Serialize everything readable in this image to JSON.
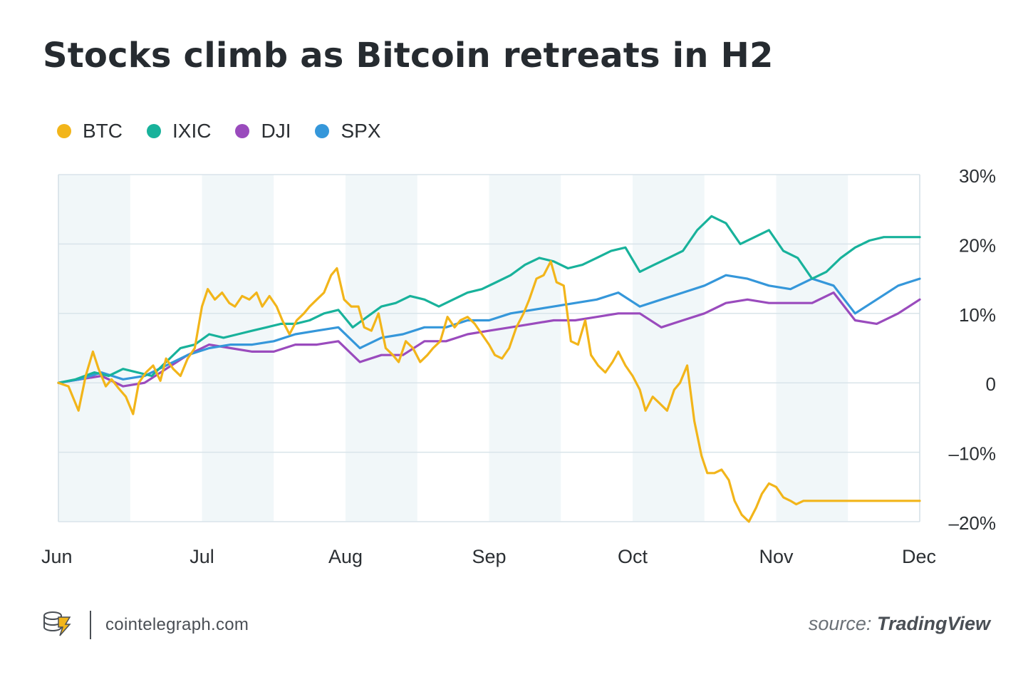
{
  "title": "Stocks climb as Bitcoin retreats in H2",
  "legend": [
    {
      "name": "BTC",
      "color": "#f2b51a"
    },
    {
      "name": "IXIC",
      "color": "#18b29b"
    },
    {
      "name": "DJI",
      "color": "#9a4bbd"
    },
    {
      "name": "SPX",
      "color": "#3597da"
    }
  ],
  "footer": {
    "logo_icon": "cointelegraph-logo-icon",
    "site": "cointelegraph.com",
    "source_prefix": "source:",
    "source_name": "TradingView"
  },
  "chart_data": {
    "type": "line",
    "x_unit": "months",
    "xlim": [
      0,
      6
    ],
    "ylim": [
      -20,
      30
    ],
    "y_ticks": [
      30,
      20,
      10,
      0,
      -10,
      -20
    ],
    "y_tick_labels": [
      "30%",
      "20%",
      "10%",
      "0",
      "–10%",
      "–20%"
    ],
    "x_ticks": [
      0,
      1,
      2,
      3,
      4,
      5,
      6
    ],
    "x_tick_labels": [
      "Jun",
      "Jul",
      "Aug",
      "Sep",
      "Oct",
      "Nov",
      "Dec"
    ],
    "grid": true,
    "legend_position": "top-left",
    "series": [
      {
        "name": "BTC",
        "color": "#f2b51a",
        "x": [
          0,
          0.07,
          0.14,
          0.19,
          0.24,
          0.28,
          0.33,
          0.37,
          0.42,
          0.47,
          0.52,
          0.56,
          0.61,
          0.66,
          0.71,
          0.75,
          0.8,
          0.85,
          0.9,
          0.95,
          1.0,
          1.04,
          1.09,
          1.14,
          1.19,
          1.23,
          1.28,
          1.33,
          1.38,
          1.42,
          1.47,
          1.52,
          1.56,
          1.61,
          1.66,
          1.71,
          1.75,
          1.8,
          1.85,
          1.9,
          1.94,
          1.99,
          2.04,
          2.09,
          2.13,
          2.18,
          2.23,
          2.28,
          2.33,
          2.37,
          2.42,
          2.47,
          2.52,
          2.57,
          2.61,
          2.66,
          2.71,
          2.76,
          2.8,
          2.85,
          2.9,
          2.95,
          3.0,
          3.04,
          3.09,
          3.14,
          3.19,
          3.24,
          3.28,
          3.33,
          3.38,
          3.43,
          3.47,
          3.52,
          3.57,
          3.62,
          3.67,
          3.71,
          3.76,
          3.81,
          3.86,
          3.9,
          3.95,
          4.0,
          4.05,
          4.09,
          4.14,
          4.19,
          4.24,
          4.29,
          4.33,
          4.38,
          4.43,
          4.48,
          4.52,
          4.57,
          4.62,
          4.67,
          4.71,
          4.76,
          4.81,
          4.86,
          4.9,
          4.95,
          5.0,
          5.05,
          5.1,
          5.14,
          5.19,
          5.24,
          5.29,
          5.33,
          5.38,
          5.43,
          5.48,
          5.52,
          5.57,
          5.62,
          5.67,
          5.71,
          5.76,
          5.81,
          5.86,
          5.9,
          5.95,
          6.0
        ],
        "values": [
          0,
          -0.5,
          -4,
          1,
          4.5,
          2,
          -0.5,
          0.5,
          -0.8,
          -2,
          -4.5,
          0,
          1.5,
          2.5,
          0.3,
          3.5,
          2,
          1,
          3.5,
          5,
          11,
          13.5,
          12,
          13,
          11.5,
          11,
          12.5,
          12,
          13,
          11,
          12.5,
          11,
          9,
          7,
          9,
          10,
          11,
          12,
          13,
          15.5,
          16.5,
          12,
          11,
          11,
          8,
          7.5,
          10,
          5,
          4,
          3,
          6,
          5,
          3,
          4,
          5,
          6,
          9.5,
          8,
          9,
          9.5,
          8.5,
          7,
          5.5,
          4,
          3.5,
          5,
          8,
          10,
          12,
          15,
          15.5,
          17.5,
          14.5,
          14,
          6,
          5.5,
          9,
          4,
          2.5,
          1.5,
          3,
          4.5,
          2.5,
          1,
          -1,
          -4,
          -2,
          -3,
          -4,
          -1,
          0,
          2.5,
          -5.5,
          -10.5,
          -13,
          -13,
          -12.5,
          -14,
          -17,
          -19,
          -20,
          -18,
          -16,
          -14.5,
          -15,
          -16.5,
          -17,
          -17.5,
          -17,
          -17,
          -17,
          -17,
          -17,
          -17,
          -17,
          -17,
          -17,
          -17,
          -17,
          -17,
          -17,
          -17,
          -17,
          -17,
          -17,
          -17
        ]
      },
      {
        "name": "IXIC",
        "color": "#18b29b",
        "x": [
          0,
          0.12,
          0.25,
          0.35,
          0.45,
          0.55,
          0.65,
          0.75,
          0.85,
          0.95,
          1.05,
          1.15,
          1.25,
          1.35,
          1.45,
          1.55,
          1.65,
          1.75,
          1.85,
          1.95,
          2.05,
          2.15,
          2.25,
          2.35,
          2.45,
          2.55,
          2.65,
          2.75,
          2.85,
          2.95,
          3.05,
          3.15,
          3.25,
          3.35,
          3.45,
          3.55,
          3.65,
          3.75,
          3.85,
          3.95,
          4.05,
          4.15,
          4.25,
          4.35,
          4.45,
          4.55,
          4.65,
          4.75,
          4.85,
          4.95,
          5.05,
          5.15,
          5.25,
          5.35,
          5.45,
          5.55,
          5.65,
          5.75,
          5.85,
          5.95,
          6.0
        ],
        "values": [
          0,
          0.5,
          1.5,
          1,
          2,
          1.5,
          1,
          3,
          5,
          5.5,
          7,
          6.5,
          7,
          7.5,
          8,
          8.5,
          8.5,
          9,
          10,
          10.5,
          8,
          9.5,
          11,
          11.5,
          12.5,
          12,
          11,
          12,
          13,
          13.5,
          14.5,
          15.5,
          17,
          18,
          17.5,
          16.5,
          17,
          18,
          19,
          19.5,
          16,
          17,
          18,
          19,
          22,
          24,
          23,
          20,
          21,
          22,
          19,
          18,
          15,
          16,
          18,
          19.5,
          20.5,
          21,
          21,
          21,
          21
        ]
      },
      {
        "name": "DJI",
        "color": "#9a4bbd",
        "x": [
          0,
          0.15,
          0.3,
          0.45,
          0.6,
          0.75,
          0.9,
          1.05,
          1.2,
          1.35,
          1.5,
          1.65,
          1.8,
          1.95,
          2.1,
          2.25,
          2.4,
          2.55,
          2.7,
          2.85,
          3.0,
          3.15,
          3.3,
          3.45,
          3.6,
          3.75,
          3.9,
          4.05,
          4.2,
          4.35,
          4.5,
          4.65,
          4.8,
          4.95,
          5.1,
          5.25,
          5.4,
          5.55,
          5.7,
          5.85,
          6.0
        ],
        "values": [
          0,
          0.5,
          1,
          -0.5,
          0,
          2,
          4,
          5.5,
          5,
          4.5,
          4.5,
          5.5,
          5.5,
          6,
          3,
          4,
          4,
          6,
          6,
          7,
          7.5,
          8,
          8.5,
          9,
          9,
          9.5,
          10,
          10,
          8,
          9,
          10,
          11.5,
          12,
          11.5,
          11.5,
          11.5,
          13,
          9,
          8.5,
          10,
          12
        ]
      },
      {
        "name": "SPX",
        "color": "#3597da",
        "x": [
          0,
          0.15,
          0.3,
          0.45,
          0.6,
          0.75,
          0.9,
          1.05,
          1.2,
          1.35,
          1.5,
          1.65,
          1.8,
          1.95,
          2.1,
          2.25,
          2.4,
          2.55,
          2.7,
          2.85,
          3.0,
          3.15,
          3.3,
          3.45,
          3.6,
          3.75,
          3.9,
          4.05,
          4.2,
          4.35,
          4.5,
          4.65,
          4.8,
          4.95,
          5.1,
          5.25,
          5.4,
          5.55,
          5.7,
          5.85,
          6.0
        ],
        "values": [
          0,
          0.5,
          1.5,
          0.5,
          1,
          2.5,
          4,
          5,
          5.5,
          5.5,
          6,
          7,
          7.5,
          8,
          5,
          6.5,
          7,
          8,
          8,
          9,
          9,
          10,
          10.5,
          11,
          11.5,
          12,
          13,
          11,
          12,
          13,
          14,
          15.5,
          15,
          14,
          13.5,
          15,
          14,
          10,
          12,
          14,
          15
        ]
      }
    ]
  }
}
